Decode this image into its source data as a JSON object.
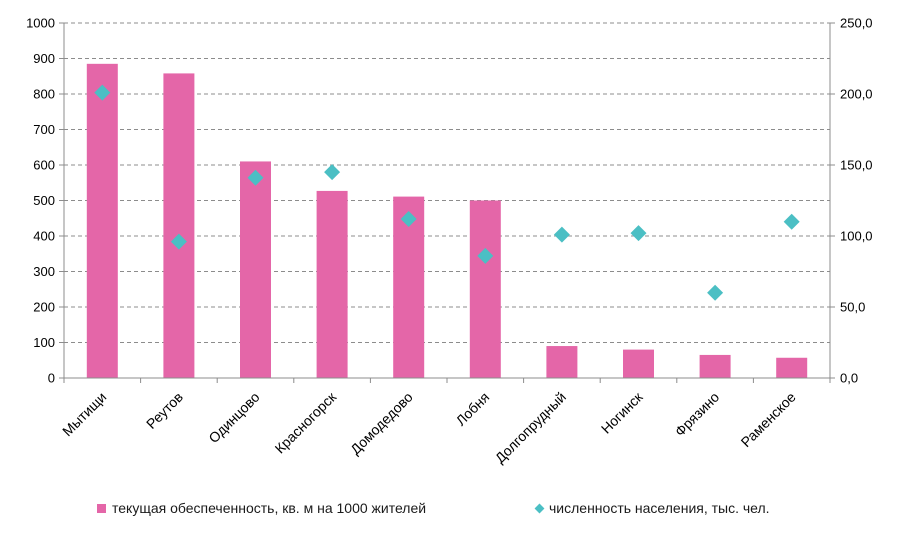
{
  "chart_data": {
    "type": "bar",
    "categories": [
      "Мытищи",
      "Реутов",
      "Одинцово",
      "Красногорск",
      "Домодедово",
      "Лобня",
      "Долгопрудный",
      "Ногинск",
      "Фрязино",
      "Раменское"
    ],
    "series": [
      {
        "name": "текущая обеспеченность, кв. м на 1000 жителей",
        "type": "bar",
        "axis": "left",
        "color": "#e466a8",
        "values": [
          885,
          858,
          610,
          527,
          511,
          500,
          90,
          80,
          65,
          57
        ]
      },
      {
        "name": "численность населения, тыс. чел.",
        "type": "scatter",
        "axis": "right",
        "color": "#4bbfc4",
        "marker": "diamond",
        "values": [
          201,
          96,
          141,
          145,
          112,
          86,
          101,
          102,
          60,
          110
        ]
      }
    ],
    "y_left": {
      "min": 0,
      "max": 1000,
      "ticks": [
        "0",
        "100",
        "200",
        "300",
        "400",
        "500",
        "600",
        "700",
        "800",
        "900",
        "1000"
      ]
    },
    "y_right": {
      "min": 0,
      "max": 250,
      "ticks": [
        "0,0",
        "50,0",
        "100,0",
        "150,0",
        "200,0",
        "250,0"
      ]
    },
    "grid": "horizontal dashed",
    "legend": "bottom"
  }
}
